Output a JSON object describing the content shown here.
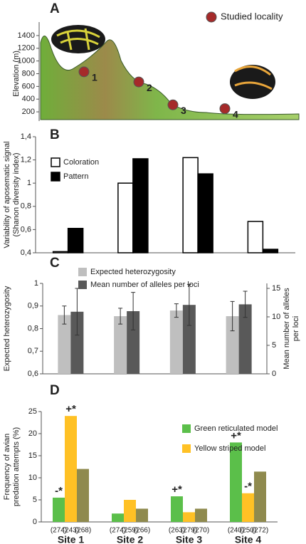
{
  "chart_data": [
    {
      "type": "scatter",
      "panel": "A",
      "ylabel": [
        "Elevation (m)"
      ],
      "ylim": [
        100,
        1500
      ],
      "yticks": [
        200,
        400,
        600,
        800,
        1000,
        1200,
        1400
      ],
      "series": [
        {
          "name": "Studied locality",
          "color": "#a52a2a",
          "values": [
            830,
            670,
            310,
            250
          ],
          "labels": [
            "1",
            "2",
            "3",
            "4"
          ]
        }
      ]
    },
    {
      "type": "bar",
      "panel": "B",
      "ylabel": [
        "Variability of aposematic signal",
        "(Shanon diversity index)"
      ],
      "ylim": [
        0.4,
        1.4
      ],
      "yticks": [
        {
          "value": 0.4,
          "label": "0,4"
        },
        {
          "value": 0.6,
          "label": "0,6"
        },
        {
          "value": 0.8,
          "label": "0,8"
        },
        1,
        {
          "value": 1.2,
          "label": "1,2"
        },
        {
          "value": 1.4,
          "label": "1,4"
        }
      ],
      "series": [
        {
          "name": "Coloration",
          "color": "#ffffff",
          "values": [
            0.41,
            1.0,
            1.22,
            0.67
          ]
        },
        {
          "name": "Pattern",
          "color": "#000000",
          "values": [
            0.61,
            1.21,
            1.08,
            0.43
          ]
        }
      ]
    },
    {
      "type": "bar",
      "panel": "C",
      "ylabel": [
        "Expected heterozygosity"
      ],
      "y2label": [
        "Mean number of alleles",
        "per loci"
      ],
      "ylim": [
        0.6,
        1
      ],
      "yticks": [
        {
          "value": 0.6,
          "label": "0,6"
        },
        {
          "value": 0.7,
          "label": "0,7"
        },
        {
          "value": 0.8,
          "label": "0,8"
        },
        {
          "value": 0.9,
          "label": "0,9"
        },
        1
      ],
      "y2lim": [
        0,
        15.875
      ],
      "y2ticks": [
        0,
        5,
        10,
        15
      ],
      "series": [
        {
          "name": "Expected heterozygosity",
          "color": "#bfbfbf",
          "values": [
            0.86,
            0.855,
            0.88,
            0.855
          ],
          "errors": [
            0.04,
            0.035,
            0.03,
            0.065
          ]
        },
        {
          "name": "Mean number of alleles per loci",
          "color": "#595959",
          "axis": "y2",
          "values": [
            10.9,
            11,
            12.1,
            12.2
          ],
          "errors": [
            4.1,
            3.3,
            3.6,
            2.3
          ]
        }
      ]
    },
    {
      "type": "bar",
      "panel": "D",
      "ylabel": [
        "Frequency of avian",
        "predation attempts (%)"
      ],
      "ylim": [
        0,
        25
      ],
      "yticks": [
        0,
        5,
        10,
        15,
        20,
        25
      ],
      "categories": [
        "Site 1",
        "Site 2",
        "Site 3",
        "Site 4"
      ],
      "sample_sizes": [
        [
          "(274)",
          "(243)",
          "(268)"
        ],
        [
          "(274)",
          "(259)",
          "(266)"
        ],
        [
          "(263)",
          "(279)",
          "(270)"
        ],
        [
          "(240)",
          "(250)",
          "(272)"
        ]
      ],
      "series": [
        {
          "name": "Green reticulated model",
          "color": "#5bbf4a",
          "values": [
            5.5,
            1.9,
            5.8,
            18
          ],
          "significance": [
            "-*",
            null,
            "+*",
            "+*"
          ]
        },
        {
          "name": "Yellow striped model",
          "color": "#ffc125",
          "values": [
            24,
            5,
            2.2,
            6.5
          ],
          "significance": [
            "+*",
            null,
            null,
            "-*"
          ]
        },
        {
          "color": "#8f8a4e",
          "values": [
            12,
            3,
            3,
            11.4
          ]
        }
      ]
    }
  ]
}
